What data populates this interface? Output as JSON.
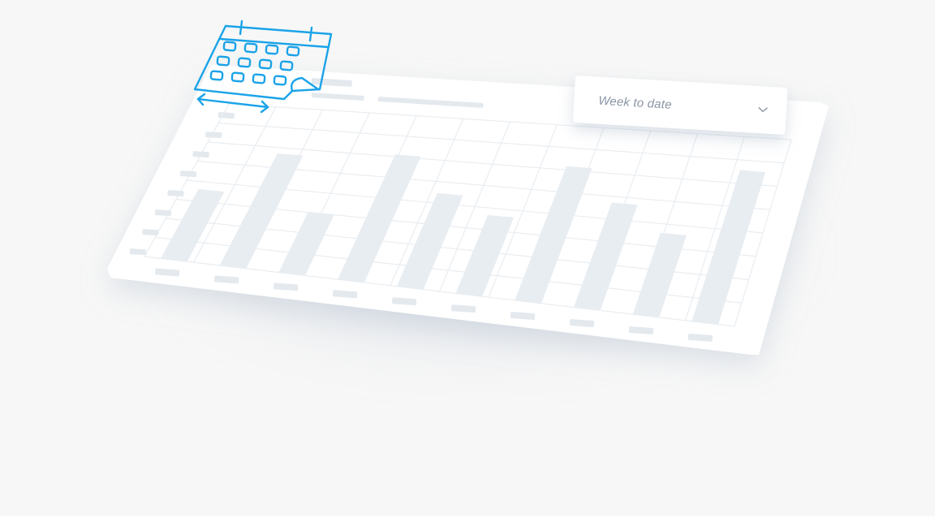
{
  "dropdown": {
    "selected_label": "Week to date"
  },
  "icons": {
    "calendar": "calendar-icon",
    "range_arrow": "double-arrow-icon",
    "chevron": "chevron-down-icon"
  },
  "colors": {
    "background": "#f7f7f7",
    "card": "#ffffff",
    "grid": "#e9edf1",
    "bar": "#e8edf2",
    "placeholder": "#e4e9ee",
    "accent": "#1aa3e8",
    "text_muted": "#8a95a4"
  },
  "chart_data": {
    "type": "bar",
    "values": [
      0.55,
      0.87,
      0.46,
      0.93,
      0.68,
      0.56,
      0.94,
      0.72,
      0.55,
      1.0
    ],
    "grid": true
  }
}
